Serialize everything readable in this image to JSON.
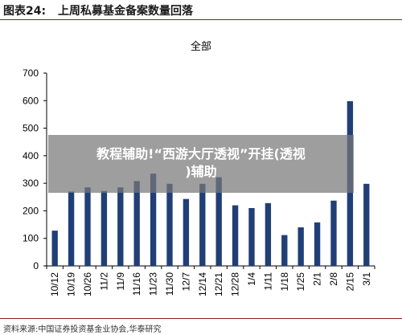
{
  "header": {
    "label": "图表24:",
    "title": "上周私募基金备案数量回落"
  },
  "overlay": {
    "line1": "教程辅助!“西游大厅透视”开挂(透视",
    "line2": ")辅助"
  },
  "footer": {
    "source": "资料来源:中国证券投资基金业协会,华泰研究"
  },
  "colors": {
    "bar": "#1f3f7a",
    "header_rule": "#8f1d22"
  },
  "chart_data": {
    "type": "bar",
    "title": "全部",
    "xlabel": "",
    "ylabel": "",
    "ylim": [
      0,
      700
    ],
    "yticks": [
      0,
      100,
      200,
      300,
      400,
      500,
      600,
      700
    ],
    "grid": false,
    "categories": [
      "10/12",
      "10/19",
      "10/26",
      "11/2",
      "11/9",
      "11/16",
      "11/23",
      "11/30",
      "12/7",
      "12/14",
      "12/21",
      "12/28",
      "1/4",
      "1/11",
      "1/18",
      "1/25",
      "2/1",
      "2/8",
      "2/15",
      "3/1"
    ],
    "values": [
      128,
      270,
      285,
      272,
      285,
      308,
      335,
      298,
      243,
      298,
      322,
      220,
      210,
      228,
      112,
      140,
      158,
      237,
      598,
      298
    ]
  }
}
